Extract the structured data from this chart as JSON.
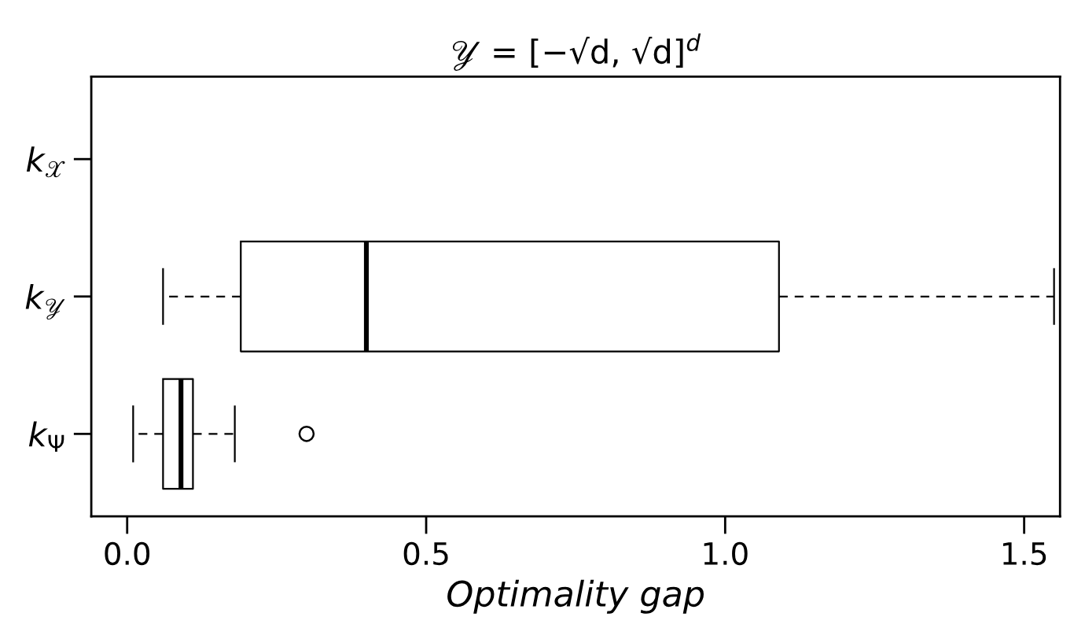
{
  "chart_data": {
    "type": "box",
    "orientation": "horizontal",
    "title": "𝒴 = [−√d, √d]$^{d}$",
    "xlabel": "Optimality gap",
    "categories": [
      "k$_{𝒳}$",
      "k$_{𝒴}$",
      "k$_{Ψ}$"
    ],
    "boxes": [
      null,
      {
        "low": 0.06,
        "q1": 0.19,
        "median": 0.4,
        "q3": 1.09,
        "high": 1.55
      },
      {
        "low": 0.01,
        "q1": 0.06,
        "median": 0.09,
        "q3": 0.11,
        "high": 0.18,
        "outliers": [
          0.3
        ]
      }
    ],
    "color": "#000000",
    "xlim": [
      -0.06,
      1.56
    ],
    "xticks": [
      {
        "value": 0,
        "label": "0.0"
      },
      0.5,
      {
        "value": 1,
        "label": "1.0"
      },
      1.5
    ],
    "grid": false
  }
}
